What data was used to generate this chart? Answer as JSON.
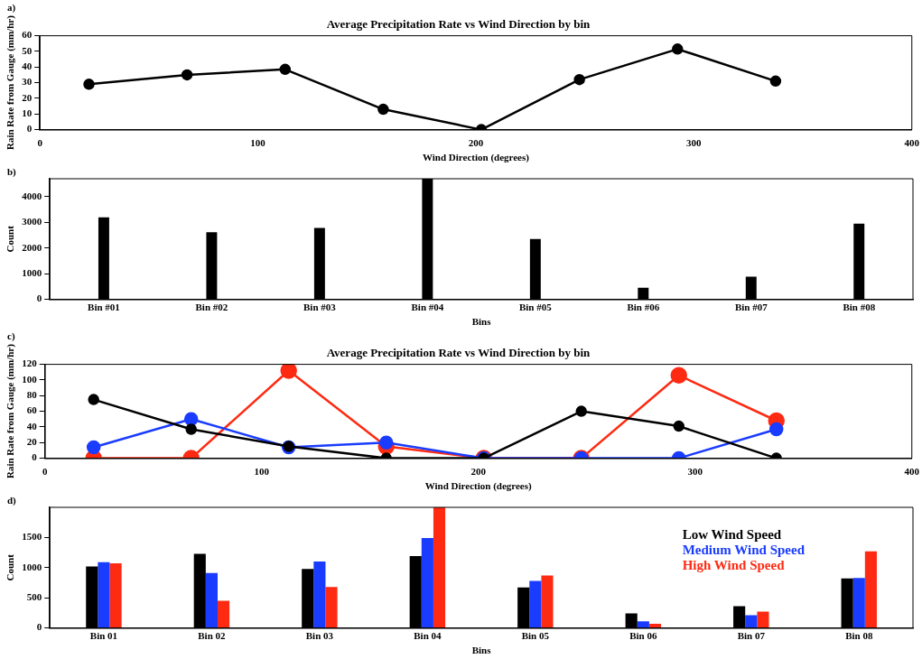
{
  "chart_data": [
    {
      "type": "line",
      "title": "Average Precipitation Rate vs Wind Direction by bin",
      "xlabel": "Wind Direction (degrees)",
      "ylabel": "Rain Rate from Gauge (mm/hr)",
      "annotations": [
        "a)"
      ],
      "x": [
        22.5,
        67.5,
        112.5,
        157.5,
        202.5,
        247.5,
        292.5,
        337.5
      ],
      "series": [
        {
          "color": "#000000",
          "values": [
            29,
            35,
            38.5,
            13,
            0,
            32,
            51.5,
            31
          ]
        }
      ],
      "xlim": [
        0,
        400
      ],
      "xticks": [
        0,
        100,
        200,
        300,
        400
      ],
      "ylim": [
        0,
        60
      ],
      "yticks": [
        0,
        10,
        20,
        30,
        40,
        50,
        60
      ],
      "marker": "circle",
      "grid": false,
      "legend": false
    },
    {
      "type": "bar",
      "xlabel": "Bins",
      "ylabel": "Count",
      "annotations": [
        "b)"
      ],
      "categories": [
        "Bin #01",
        "Bin #02",
        "Bin #03",
        "Bin #04",
        "Bin #05",
        "Bin #06",
        "Bin #07",
        "Bin #08"
      ],
      "series": [
        {
          "color": "#000000",
          "values": [
            3200,
            2620,
            2780,
            4700,
            2350,
            450,
            880,
            2950
          ]
        }
      ],
      "ylim": [
        0,
        4700
      ],
      "yticks": [
        0,
        1000,
        2000,
        3000,
        4000
      ],
      "grid": false,
      "legend": false
    },
    {
      "type": "line",
      "title": "Average Precipitation Rate vs Wind Direction by bin",
      "xlabel": "Wind Direction (degrees)",
      "ylabel": "Rain Rate from Gauge (mm/hr)",
      "annotations": [
        "c)"
      ],
      "x": [
        22.5,
        67.5,
        112.5,
        157.5,
        202.5,
        247.5,
        292.5,
        337.5
      ],
      "series": [
        {
          "color": "#000000",
          "values": [
            75,
            37,
            15,
            0,
            0,
            60,
            41,
            0
          ]
        },
        {
          "color": "#1a3cff",
          "values": [
            14,
            50,
            14,
            20,
            0,
            0,
            0,
            37
          ]
        },
        {
          "color": "#ff2a12",
          "values": [
            0,
            0,
            112,
            15,
            0,
            0,
            106,
            48
          ]
        }
      ],
      "xlim": [
        0,
        400
      ],
      "xticks": [
        0,
        100,
        200,
        300,
        400
      ],
      "ylim": [
        0,
        120
      ],
      "yticks": [
        0,
        20,
        40,
        60,
        80,
        100,
        120
      ],
      "marker": "circle",
      "grid": false,
      "legend": false
    },
    {
      "type": "bar",
      "xlabel": "Bins",
      "ylabel": "Count",
      "annotations": [
        "d)"
      ],
      "categories": [
        "Bin 01",
        "Bin 02",
        "Bin 03",
        "Bin 04",
        "Bin 05",
        "Bin 06",
        "Bin 07",
        "Bin 08"
      ],
      "series": [
        {
          "name": "Low Wind Speed",
          "color": "#000000",
          "values": [
            1020,
            1230,
            980,
            1190,
            670,
            240,
            360,
            820
          ]
        },
        {
          "name": "Medium Wind Speed",
          "color": "#1a3cff",
          "values": [
            1090,
            910,
            1100,
            1490,
            780,
            110,
            210,
            830
          ]
        },
        {
          "name": "High Wind Speed",
          "color": "#ff2a12",
          "values": [
            1070,
            450,
            680,
            2000,
            870,
            70,
            270,
            1270
          ]
        }
      ],
      "ylim": [
        0,
        2000
      ],
      "yticks": [
        0,
        500,
        1000,
        1500
      ],
      "grid": false,
      "legend": "top right"
    }
  ]
}
